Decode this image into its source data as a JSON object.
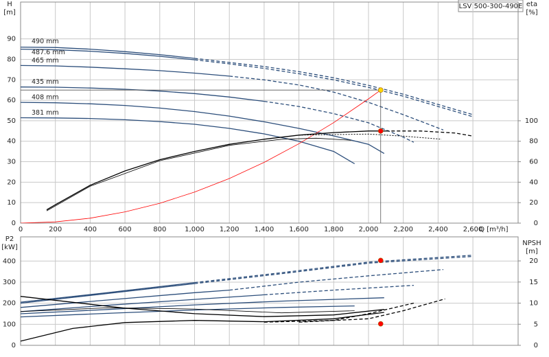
{
  "chart_data": [
    {
      "type": "line",
      "model": "LSV 500-300-490E",
      "x_label": "Q [m³/h]",
      "y_label": "H",
      "y_unit": "[m]",
      "y2_label": "eta",
      "y2_unit": "[%]",
      "xlim": [
        0,
        2860
      ],
      "ylim": [
        0,
        108
      ],
      "y2lim": [
        0,
        216
      ],
      "xticks": [
        0,
        200,
        400,
        600,
        800,
        {
          "value": 1000,
          "label": "1,000"
        },
        {
          "value": 1200,
          "label": "1,200"
        },
        {
          "value": 1400,
          "label": "1,400"
        },
        {
          "value": 1600,
          "label": "1,600"
        },
        {
          "value": 1800,
          "label": "1,800"
        },
        {
          "value": 2000,
          "label": "2,000"
        },
        {
          "value": 2200,
          "label": "2,200"
        },
        {
          "value": 2400,
          "label": "2,400"
        },
        {
          "value": 2600,
          "label": "2,600"
        }
      ],
      "yticks": [
        0,
        10,
        20,
        30,
        40,
        50,
        60,
        70,
        80,
        90
      ],
      "y2ticks": [
        0,
        20,
        40,
        60,
        80,
        100
      ],
      "grid": true,
      "series": [
        {
          "name": "490 mm",
          "color": "#2b4d7a",
          "style": "solid",
          "x": [
            0,
            200,
            400,
            600,
            800,
            1000
          ],
          "values": [
            86,
            85.8,
            85,
            83.8,
            82.3,
            80.5
          ]
        },
        {
          "color": "#2b4d7a",
          "style": "dashed",
          "x": [
            1000,
            1200,
            1400,
            1600,
            1800,
            2000,
            2200,
            2400,
            2600
          ],
          "values": [
            80.5,
            78.5,
            76.5,
            74,
            71,
            67.3,
            63,
            58,
            53
          ]
        },
        {
          "name": "487.6 mm",
          "color": "#2b4d7a",
          "style": "solid",
          "x": [
            0,
            200,
            400,
            600,
            800,
            1000
          ],
          "values": [
            85,
            84.7,
            84,
            82.9,
            81.5,
            79.8
          ]
        },
        {
          "color": "#2b4d7a",
          "style": "dashed",
          "x": [
            1000,
            1200,
            1400,
            1600,
            1800,
            2000,
            2200,
            2400,
            2600
          ],
          "values": [
            79.8,
            77.8,
            75.6,
            73,
            70,
            66.3,
            62,
            57,
            52
          ]
        },
        {
          "name": "465 mm",
          "color": "#2b4d7a",
          "style": "solid",
          "x": [
            0,
            200,
            400,
            600,
            800,
            1000,
            1200
          ],
          "values": [
            77,
            76.8,
            76.2,
            75.4,
            74.5,
            73.3,
            71.8
          ]
        },
        {
          "color": "#2b4d7a",
          "style": "dashed",
          "x": [
            1200,
            1400,
            1600,
            1800,
            2000,
            2200,
            2430
          ],
          "values": [
            71.8,
            70,
            67.5,
            64,
            59,
            53,
            45.5
          ]
        },
        {
          "name": "435 mm",
          "color": "#2b4d7a",
          "style": "solid",
          "x": [
            0,
            200,
            400,
            600,
            800,
            1000,
            1200,
            1400
          ],
          "values": [
            66.5,
            66.4,
            66,
            65.4,
            64.5,
            63.3,
            61.6,
            59.5
          ]
        },
        {
          "color": "#2b4d7a",
          "style": "dashed",
          "x": [
            1400,
            1600,
            1800,
            2000,
            2200,
            2260
          ],
          "values": [
            59.5,
            57,
            53.5,
            49,
            42,
            39.5
          ]
        },
        {
          "name": "408 mm",
          "color": "#2b4d7a",
          "style": "solid",
          "x": [
            0,
            200,
            400,
            600,
            800,
            1000,
            1200,
            1400,
            1600,
            1800,
            2000,
            2090
          ],
          "values": [
            59,
            58.8,
            58.3,
            57.5,
            56.2,
            54.5,
            52.3,
            49.5,
            46.3,
            42.6,
            38.5,
            34
          ]
        },
        {
          "name": "381 mm",
          "color": "#2b4d7a",
          "style": "solid",
          "x": [
            0,
            200,
            400,
            600,
            800,
            1000,
            1200,
            1400,
            1600,
            1800,
            1920
          ],
          "values": [
            51.5,
            51.4,
            51.1,
            50.5,
            49.6,
            48.3,
            46.3,
            43.6,
            40,
            35,
            29
          ]
        },
        {
          "color": "#ff0000",
          "style": "thin",
          "x": [
            0,
            200,
            400,
            600,
            800,
            1000,
            1200,
            1400,
            1600,
            1800,
            2000,
            2070
          ],
          "values": [
            0,
            0.6,
            2.4,
            5.5,
            9.7,
            15.2,
            21.8,
            29.7,
            38.8,
            49.1,
            60.7,
            65
          ]
        },
        {
          "color": "#000000",
          "style": "solid",
          "axis": "y2",
          "x": [
            150,
            200,
            400,
            600,
            800,
            1000,
            1200,
            1400,
            1600,
            1800,
            2000,
            2100
          ],
          "values": [
            13,
            18,
            37,
            51,
            62,
            70,
            77,
            82,
            86,
            88.5,
            90,
            90
          ]
        },
        {
          "color": "#000000",
          "style": "dashed",
          "axis": "y2",
          "x": [
            2100,
            2300,
            2500,
            2600
          ],
          "values": [
            90,
            90,
            88,
            85
          ]
        },
        {
          "color": "#000000",
          "style": "thin",
          "axis": "y2",
          "x": [
            150,
            400,
            800,
            1200,
            1500,
            1700,
            1900
          ],
          "values": [
            12,
            36,
            61,
            76,
            82,
            83,
            81
          ]
        },
        {
          "color": "#000000",
          "style": "dotted",
          "axis": "y2",
          "x": [
            1600,
            2000,
            2200,
            2420
          ],
          "values": [
            86,
            87,
            85,
            82
          ]
        }
      ],
      "points": [
        {
          "x": 2070,
          "y": 65,
          "color": "#ffd700",
          "guides": true
        },
        {
          "x": 2070,
          "y": 90,
          "color": "#ff0000",
          "axis": "y2"
        }
      ]
    },
    {
      "type": "line",
      "y_label": "P2",
      "y_unit": "[kW]",
      "y2_label": "NPSH",
      "y2_unit": "[m]",
      "xlim": [
        0,
        2860
      ],
      "ylim": [
        0,
        515
      ],
      "y2lim": [
        0,
        25.7
      ],
      "yticks": [
        0,
        100,
        200,
        300,
        400
      ],
      "y2ticks": [
        0,
        5,
        10,
        15,
        20
      ],
      "grid": true,
      "series": [
        {
          "color": "#2b4d7a",
          "style": "solid",
          "x": [
            0,
            500,
            1000
          ],
          "values": [
            205,
            250,
            298
          ]
        },
        {
          "color": "#2b4d7a",
          "style": "dashed",
          "x": [
            1000,
            1500,
            2000,
            2600
          ],
          "values": [
            298,
            345,
            395,
            428
          ]
        },
        {
          "color": "#2b4d7a",
          "style": "solid",
          "x": [
            0,
            500,
            1000
          ],
          "values": [
            200,
            246,
            293
          ]
        },
        {
          "color": "#2b4d7a",
          "style": "dashed",
          "x": [
            1000,
            1500,
            2000,
            2600
          ],
          "values": [
            293,
            340,
            390,
            422
          ]
        },
        {
          "color": "#2b4d7a",
          "style": "solid",
          "x": [
            0,
            500,
            1000,
            1200
          ],
          "values": [
            180,
            215,
            250,
            262
          ]
        },
        {
          "color": "#2b4d7a",
          "style": "dashed",
          "x": [
            1200,
            1600,
            2000,
            2430
          ],
          "values": [
            262,
            300,
            330,
            360
          ]
        },
        {
          "color": "#2b4d7a",
          "style": "solid",
          "x": [
            0,
            500,
            1000,
            1400
          ],
          "values": [
            160,
            190,
            218,
            240
          ]
        },
        {
          "color": "#2b4d7a",
          "style": "dashed",
          "x": [
            1400,
            1800,
            2260
          ],
          "values": [
            240,
            262,
            285
          ]
        },
        {
          "color": "#2b4d7a",
          "style": "solid",
          "x": [
            0,
            500,
            1000,
            1500,
            2090
          ],
          "values": [
            150,
            170,
            192,
            210,
            226
          ]
        },
        {
          "color": "#2b4d7a",
          "style": "solid",
          "x": [
            0,
            500,
            1000,
            1500,
            1920
          ],
          "values": [
            135,
            152,
            168,
            180,
            187
          ]
        },
        {
          "color": "#000000",
          "style": "solid",
          "axis": "y2",
          "x": [
            0,
            300,
            600,
            1000,
            1400,
            1800,
            2090
          ],
          "values": [
            11.6,
            10.2,
            8.8,
            7.5,
            6.8,
            7.2,
            8.5
          ]
        },
        {
          "color": "#000000",
          "style": "solid",
          "axis": "y2",
          "x": [
            0,
            300,
            600,
            1000,
            1400,
            1800,
            2090
          ],
          "values": [
            1,
            4,
            5.4,
            5.9,
            5.6,
            6.3,
            7.8
          ]
        },
        {
          "color": "#000000",
          "style": "thin",
          "axis": "y2",
          "x": [
            0,
            500,
            1000,
            1500,
            1920
          ],
          "values": [
            8,
            8.9,
            8.6,
            7.7,
            8.2
          ]
        },
        {
          "color": "#000000",
          "style": "dashed",
          "axis": "y2",
          "x": [
            1400,
            1800,
            2000,
            2260
          ],
          "values": [
            5.5,
            5.9,
            7.5,
            10
          ]
        },
        {
          "color": "#000000",
          "style": "dashed",
          "axis": "y2",
          "x": [
            1600,
            2000,
            2200,
            2440
          ],
          "values": [
            5.5,
            6.3,
            8.2,
            11
          ]
        }
      ],
      "points": [
        {
          "x": 2070,
          "y": 403,
          "color": "#ff0000"
        },
        {
          "x": 2070,
          "y": 5.1,
          "color": "#ff0000",
          "axis": "y2"
        }
      ]
    }
  ]
}
